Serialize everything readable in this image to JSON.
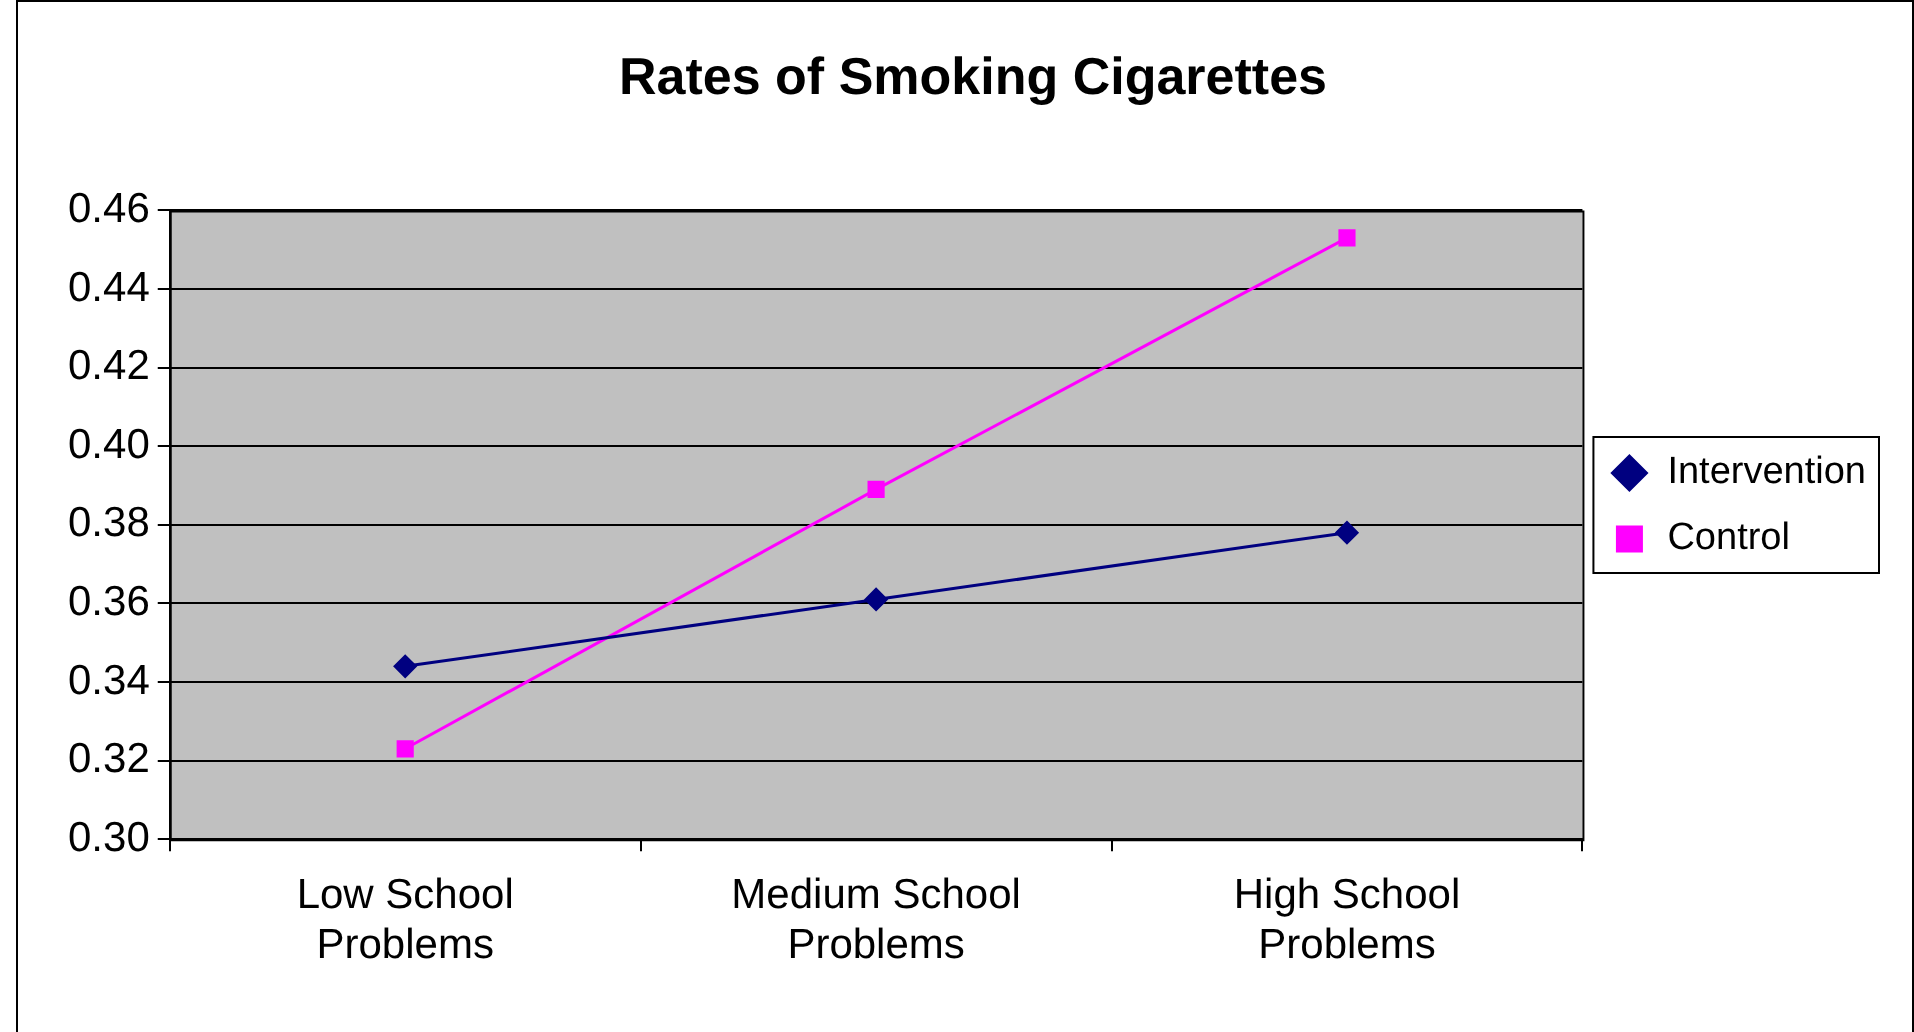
{
  "chart_data": {
    "type": "line",
    "title": "Rates of Smoking Cigarettes",
    "categories": [
      "Low School Problems",
      "Medium School Problems",
      "High School Problems"
    ],
    "series": [
      {
        "name": "Intervention",
        "color": "#000080",
        "marker": "diamond",
        "values": [
          0.344,
          0.361,
          0.378
        ]
      },
      {
        "name": "Control",
        "color": "#ff00ff",
        "marker": "square",
        "values": [
          0.323,
          0.389,
          0.453
        ]
      }
    ],
    "ylim": [
      0.3,
      0.46
    ],
    "yticks": [
      {
        "value": 0.3,
        "label": "0.30"
      },
      {
        "value": 0.32,
        "label": "0.32"
      },
      {
        "value": 0.34,
        "label": "0.34"
      },
      {
        "value": 0.36,
        "label": "0.36"
      },
      {
        "value": 0.38,
        "label": "0.38"
      },
      {
        "value": 0.4,
        "label": "0.40"
      },
      {
        "value": 0.42,
        "label": "0.42"
      },
      {
        "value": 0.44,
        "label": "0.44"
      },
      {
        "value": 0.46,
        "label": "0.46"
      }
    ],
    "grid": "y",
    "legend": "right",
    "line_style": "solid"
  }
}
